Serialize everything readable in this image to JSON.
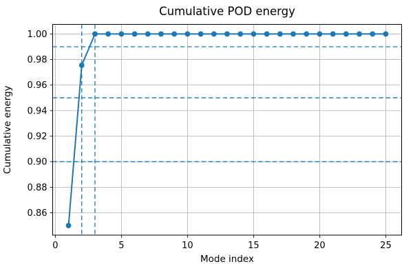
{
  "figure": {
    "background_color": "#ffffff"
  },
  "chart_data": {
    "type": "line",
    "title": "Cumulative POD energy",
    "xlabel": "Mode index",
    "ylabel": "Cumulative energy",
    "x": [
      1,
      2,
      3,
      4,
      5,
      6,
      7,
      8,
      9,
      10,
      11,
      12,
      13,
      14,
      15,
      16,
      17,
      18,
      19,
      20,
      21,
      22,
      23,
      24,
      25
    ],
    "y": [
      0.85,
      0.9755,
      1.0,
      1.0,
      1.0,
      1.0,
      1.0,
      1.0,
      1.0,
      1.0,
      1.0,
      1.0,
      1.0,
      1.0,
      1.0,
      1.0,
      1.0,
      1.0,
      1.0,
      1.0,
      1.0,
      1.0,
      1.0,
      1.0,
      1.0
    ],
    "xlim": [
      -0.2,
      26.2
    ],
    "ylim": [
      0.8425,
      1.0075
    ],
    "xticks": [
      0,
      5,
      10,
      15,
      20,
      25
    ],
    "yticks": [
      0.86,
      0.88,
      0.9,
      0.92,
      0.94,
      0.96,
      0.98,
      1.0
    ],
    "ytick_decimals": 2,
    "grid": true,
    "legend_position": "none",
    "marker": "circle",
    "line_style": "solid",
    "threshold_line_style": "dashed",
    "hlines": [
      0.9,
      0.95,
      0.99
    ],
    "vlines": [
      2,
      3
    ],
    "colors": {
      "series": "#1f77b4",
      "threshold": "#1f77b4",
      "grid": "#b0b0b0",
      "spine": "#000000",
      "text": "#000000"
    }
  }
}
